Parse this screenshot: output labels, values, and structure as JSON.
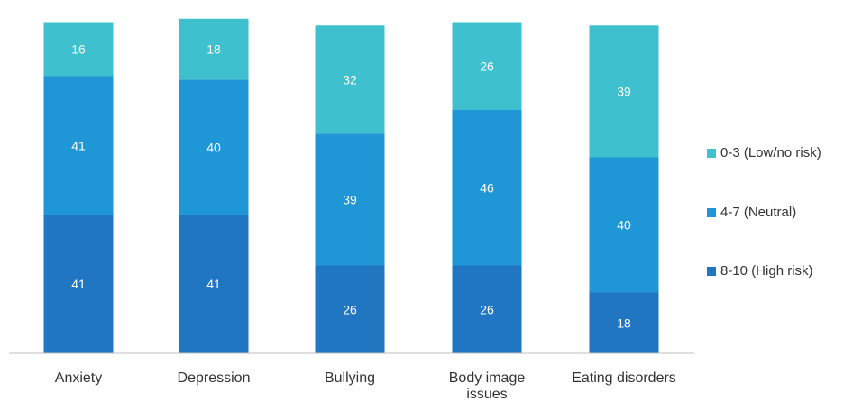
{
  "chart_data": {
    "type": "bar",
    "stacked": true,
    "orientation": "vertical",
    "categories": [
      "Anxiety",
      "Depression",
      "Bullying",
      "Body image issues",
      "Eating disorders"
    ],
    "series": [
      {
        "name": "8-10 (High risk)",
        "color": "#2176c1",
        "values": [
          41,
          41,
          26,
          26,
          18
        ]
      },
      {
        "name": "4-7 (Neutral)",
        "color": "#1f96d5",
        "values": [
          41,
          40,
          39,
          46,
          40
        ]
      },
      {
        "name": "0-3 (Low/no risk)",
        "color": "#3fc0ce",
        "values": [
          16,
          18,
          32,
          26,
          39
        ]
      }
    ],
    "legend_order": [
      "0-3 (Low/no risk)",
      "4-7 (Neutral)",
      "8-10 (High risk)"
    ],
    "legend_position": "right",
    "ylim": [
      0,
      100
    ],
    "grid": false,
    "data_labels": true,
    "title": "",
    "xlabel": "",
    "ylabel": ""
  }
}
